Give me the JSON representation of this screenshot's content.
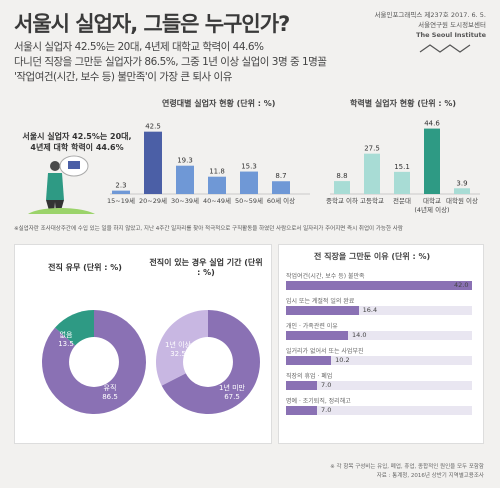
{
  "title": "서울시 실업자, 그들은 누구인가?",
  "headlines": [
    "서울시 실업자 42.5%는 20대, 4년제 대학교 학력이 44.6%",
    "다니던 직장을 그만둔 실업자가 86.5%, 그중 1년 이상 실업이 3명 중 1명꼴",
    "'작업여건(시간, 보수 등) 불만족'이 가장 큰 퇴사 이유"
  ],
  "meta": {
    "line1": "서울인포그래픽스 제237호 2017. 6. 5.",
    "line2": "서울연구원 도시정보센터",
    "line3": "The Seoul Institute"
  },
  "person_text": "서울시 실업자 42.5%는 20대, 4년제 대학 학력이 44.6%",
  "footnote": "※실업자란 조사대상주간에 수입 있는 일을 하지 않았고, 지난 4주간 일자리를 찾아 적극적으로 구직활동을 하였던 사람으로서 일자리가 주어지면 즉시 취업이 가능한 사람",
  "colors": {
    "age_bar": "#6f98d6",
    "age_highlight": "#4b5fa6",
    "edu_bar": "#a8dcd5",
    "edu_highlight": "#2e9a84",
    "donut_purple": "#8a71b4",
    "donut_green": "#2e9a84",
    "donut_lavender": "#c8b7e2",
    "reason_bar": "#8a71b4"
  },
  "chart_data": [
    {
      "type": "bar",
      "title": "연령대별 실업자 현황 (단위 : %)",
      "categories": [
        "15~19세",
        "20~29세",
        "30~39세",
        "40~49세",
        "50~59세",
        "60세 이상"
      ],
      "values": [
        2.3,
        42.5,
        19.3,
        11.8,
        15.3,
        8.7
      ],
      "highlight": "20~29세",
      "ylim": [
        0,
        45
      ]
    },
    {
      "type": "bar",
      "title": "학력별 실업자 현황 (단위 : %)",
      "categories": [
        "중학교 이하",
        "고등학교",
        "전문대",
        "대학교",
        "대학원 이상"
      ],
      "sublabels": [
        "",
        "",
        "",
        "(4년제 이상)",
        ""
      ],
      "values": [
        8.8,
        27.5,
        15.1,
        44.6,
        3.9
      ],
      "highlight": "대학교",
      "ylim": [
        0,
        45
      ]
    },
    {
      "type": "pie",
      "title": "전직 유무 (단위 : %)",
      "slices": [
        {
          "label": "유직",
          "value": 86.5
        },
        {
          "label": "없음",
          "value": 13.5
        }
      ]
    },
    {
      "type": "pie",
      "title": "전직이 있는 경우 실업 기간 (단위 : %)",
      "slices": [
        {
          "label": "1년 미만",
          "value": 67.5
        },
        {
          "label": "1년 이상",
          "value": 32.5
        }
      ]
    },
    {
      "type": "bar",
      "title": "전 직장을 그만둔 이유 (단위 : %)",
      "categories": [
        "작업여건(시간, 보수 등) 불만족",
        "임시 또는 계절적 일의 완료",
        "개인 · 가족관련 이유",
        "일거리가 없어서 또는 사업부진",
        "직장의 휴업 · 폐업",
        "명예 · 조기퇴직, 정리해고"
      ],
      "values": [
        42.0,
        16.4,
        14.0,
        10.2,
        7.0,
        7.0
      ],
      "xlim": [
        0,
        42
      ]
    }
  ],
  "source": {
    "line1": "※ 각 항목 구성비는 유입, 폐업, 휴업, 종합적인 원인을 모두 포함함",
    "line2": "자료 : 통계청, 2016년 상반기 지역별고용조사"
  }
}
